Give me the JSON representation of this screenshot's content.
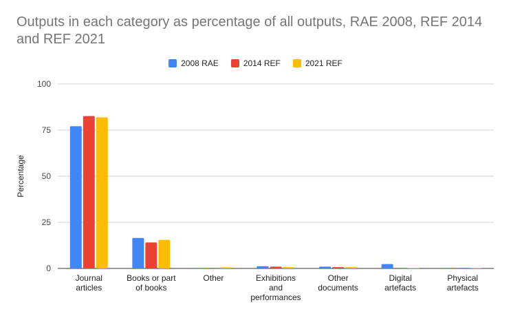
{
  "chart_data": {
    "type": "bar",
    "title": "Outputs in each category as percentage of all outputs, RAE 2008, REF 2014 and REF 2021",
    "xlabel": "",
    "ylabel": "Percentage",
    "ylim": [
      0,
      100
    ],
    "yticks": [
      0,
      25,
      50,
      75,
      100
    ],
    "grid": true,
    "legend_position": "top",
    "categories": [
      [
        "Journal",
        "articles"
      ],
      [
        "Books or part",
        "of books"
      ],
      [
        "Other"
      ],
      [
        "Exhibitions",
        "and",
        "performances"
      ],
      [
        "Other",
        "documents"
      ],
      [
        "Digital",
        "artefacts"
      ],
      [
        "Physical",
        "artefacts"
      ]
    ],
    "series": [
      {
        "name": "2008 RAE",
        "color": "#4285f4",
        "values": [
          77.1,
          16.5,
          0.2,
          1.2,
          1.0,
          2.4,
          0.2
        ]
      },
      {
        "name": "2014 REF",
        "color": "#ea4335",
        "values": [
          82.6,
          14.1,
          0.2,
          1.0,
          0.7,
          0.3,
          0.2
        ]
      },
      {
        "name": "2021 REF",
        "color": "#fbbc04",
        "values": [
          81.9,
          15.5,
          0.6,
          0.7,
          0.7,
          0.3,
          0.2
        ]
      }
    ]
  }
}
